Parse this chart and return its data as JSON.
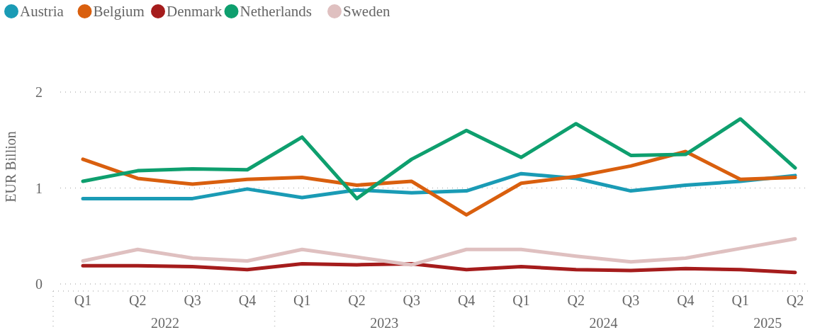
{
  "chart_data": {
    "type": "line",
    "ylabel": "EUR Billion",
    "categories": [
      "Q1",
      "Q2",
      "Q3",
      "Q4",
      "Q1",
      "Q2",
      "Q3",
      "Q4",
      "Q1",
      "Q2",
      "Q3",
      "Q4",
      "Q1",
      "Q2"
    ],
    "annotations": [
      "2022",
      "2023",
      "2024",
      "2025"
    ],
    "ylim": [
      0,
      2
    ],
    "yticks": [
      0,
      1,
      2
    ],
    "grid": "y",
    "legend": "top left",
    "marker": "none",
    "line_style": "solid",
    "series": [
      {
        "name": "Austria",
        "color": "#1a9bb5",
        "values": [
          0.89,
          0.89,
          0.89,
          0.99,
          0.9,
          0.98,
          0.95,
          0.97,
          1.15,
          1.1,
          0.97,
          1.03,
          1.07,
          1.13
        ]
      },
      {
        "name": "Belgium",
        "color": "#d95f0e",
        "values": [
          1.3,
          1.1,
          1.04,
          1.09,
          1.11,
          1.03,
          1.07,
          0.72,
          1.05,
          1.12,
          1.23,
          1.38,
          1.09,
          1.11
        ]
      },
      {
        "name": "Denmark",
        "color": "#a51c1c",
        "values": [
          0.19,
          0.19,
          0.18,
          0.15,
          0.21,
          0.2,
          0.21,
          0.15,
          0.18,
          0.15,
          0.14,
          0.16,
          0.15,
          0.12
        ]
      },
      {
        "name": "Netherlands",
        "color": "#0e9f6e",
        "values": [
          1.07,
          1.18,
          1.2,
          1.19,
          1.53,
          0.89,
          1.3,
          1.6,
          1.32,
          1.67,
          1.34,
          1.35,
          1.72,
          1.21
        ]
      },
      {
        "name": "Sweden",
        "color": "#dfc0c0",
        "values": [
          0.24,
          0.36,
          0.27,
          0.24,
          0.36,
          0.28,
          0.2,
          0.36,
          0.36,
          0.29,
          0.23,
          0.27,
          0.37,
          0.47
        ]
      }
    ]
  }
}
